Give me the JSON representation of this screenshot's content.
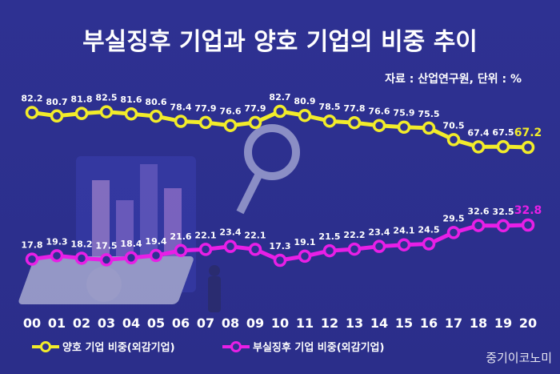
{
  "chart_data": {
    "type": "line",
    "title": "부실징후 기업과 양호 기업의 비중 추이",
    "source_note": "자료 : 산업연구원, 단위 : %",
    "x": [
      "00",
      "01",
      "02",
      "03",
      "04",
      "05",
      "06",
      "07",
      "08",
      "09",
      "10",
      "11",
      "12",
      "13",
      "14",
      "15",
      "16",
      "17",
      "18",
      "19",
      "20"
    ],
    "series": [
      {
        "name": "양호 기업 비중(외감기업)",
        "color": "#f2ec2a",
        "values": [
          82.2,
          80.7,
          81.8,
          82.5,
          81.6,
          80.6,
          78.4,
          77.9,
          76.6,
          77.9,
          82.7,
          80.9,
          78.5,
          77.8,
          76.6,
          75.9,
          75.5,
          70.5,
          67.4,
          67.5,
          67.2
        ]
      },
      {
        "name": "부실징후 기업 비중(외감기업)",
        "color": "#e81fe6",
        "values": [
          17.8,
          19.3,
          18.2,
          17.5,
          18.4,
          19.4,
          21.6,
          22.1,
          23.4,
          22.1,
          17.3,
          19.1,
          21.5,
          22.2,
          23.4,
          24.1,
          24.5,
          29.5,
          32.6,
          32.5,
          32.8
        ]
      }
    ],
    "legend_position": "bottom-left",
    "grid": false
  },
  "brand": "중기이코노미"
}
